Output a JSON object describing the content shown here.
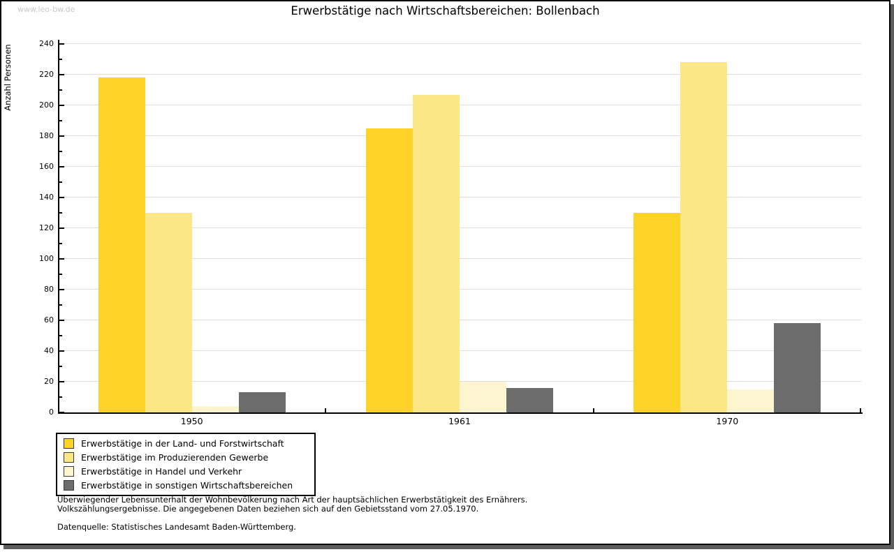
{
  "watermark": "www.leo-bw.de",
  "title": "Erwerbstätige nach Wirtschaftsbereichen: Bollenbach",
  "chart_data": {
    "type": "bar",
    "title": "Erwerbstätige nach Wirtschaftsbereichen: Bollenbach",
    "xlabel": "",
    "ylabel": "Anzahl Personen",
    "ylim": [
      0,
      240
    ],
    "ytick_step": 20,
    "grid": true,
    "legend_position": "bottom-left",
    "categories": [
      "1950",
      "1961",
      "1970"
    ],
    "series": [
      {
        "name": "Erwerbstätige in der Land- und Forstwirtschaft",
        "color": "#fdd32a",
        "values": [
          218,
          185,
          130
        ]
      },
      {
        "name": "Erwerbstätige im Produzierenden Gewerbe",
        "color": "#fce787",
        "values": [
          130,
          207,
          228
        ]
      },
      {
        "name": "Erwerbstätige in Handel und Verkehr",
        "color": "#fdf5d0",
        "values": [
          4,
          20,
          15
        ]
      },
      {
        "name": "Erwerbstätige in sonstigen Wirtschaftsbereichen",
        "color": "#6c6c6c",
        "values": [
          13,
          16,
          58
        ]
      }
    ]
  },
  "footer": {
    "line1": "Überwiegender Lebensunterhalt der Wohnbevölkerung nach Art der hauptsächlichen Erwerbstätigkeit des Ernährers.",
    "line2": "Volkszählungsergebnisse. Die angegebenen Daten beziehen sich auf den Gebietsstand vom 27.05.1970.",
    "source": "Datenquelle: Statistisches Landesamt Baden-Württemberg."
  },
  "colors": {
    "grid": "#dddddd",
    "axis": "#000000",
    "shadow": "#5e5e5e",
    "watermark": "#c9c9c9"
  }
}
